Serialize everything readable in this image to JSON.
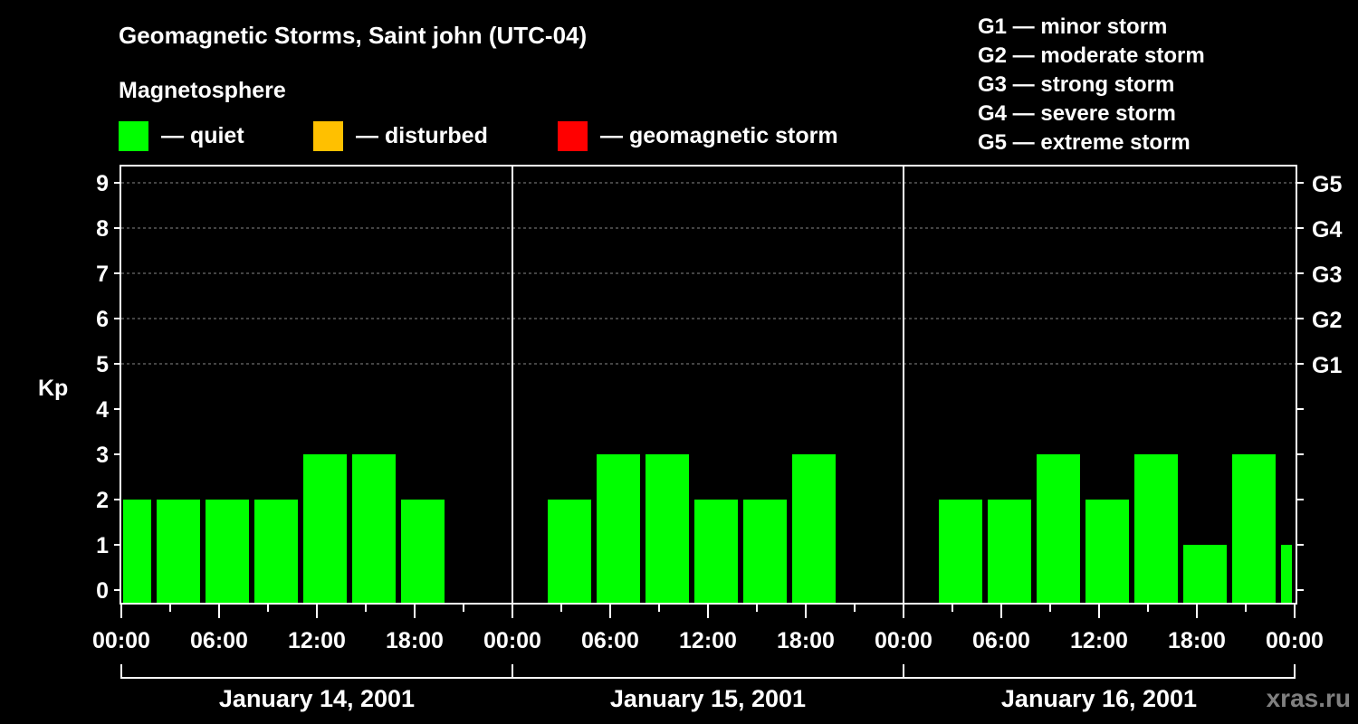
{
  "title": "Geomagnetic Storms, Saint john (UTC-04)",
  "subtitle": "Magnetosphere",
  "legend": [
    {
      "label": "— quiet",
      "color": "#00ff00"
    },
    {
      "label": "— disturbed",
      "color": "#ffc000"
    },
    {
      "label": "— geomagnetic storm",
      "color": "#ff0000"
    }
  ],
  "storm_levels": [
    "G1 — minor storm",
    "G2 — moderate storm",
    "G3 — strong storm",
    "G4 — severe storm",
    "G5 — extreme storm"
  ],
  "watermark": "xras.ru",
  "chart_data": {
    "type": "bar",
    "ylabel": "Kp",
    "ylim": [
      0,
      9
    ],
    "yticks": [
      "0",
      "1",
      "2",
      "3",
      "4",
      "5",
      "6",
      "7",
      "8",
      "9"
    ],
    "right_labels": [
      {
        "kp": 5,
        "label": "G1"
      },
      {
        "kp": 6,
        "label": "G2"
      },
      {
        "kp": 7,
        "label": "G3"
      },
      {
        "kp": 8,
        "label": "G4"
      },
      {
        "kp": 9,
        "label": "G5"
      }
    ],
    "xticks": [
      "00:00",
      "06:00",
      "12:00",
      "18:00",
      "00:00",
      "06:00",
      "12:00",
      "18:00",
      "00:00",
      "06:00",
      "12:00",
      "18:00",
      "00:00"
    ],
    "days": [
      "January 14, 2001",
      "January 15, 2001",
      "January 16, 2001"
    ],
    "interval_hours": 3,
    "first_interval_start_hour": -1,
    "values": [
      2,
      2,
      2,
      2,
      3,
      3,
      2,
      null,
      null,
      2,
      3,
      3,
      2,
      2,
      3,
      null,
      null,
      2,
      2,
      3,
      2,
      3,
      1,
      3,
      1
    ],
    "bar_color": "#00ff00"
  }
}
